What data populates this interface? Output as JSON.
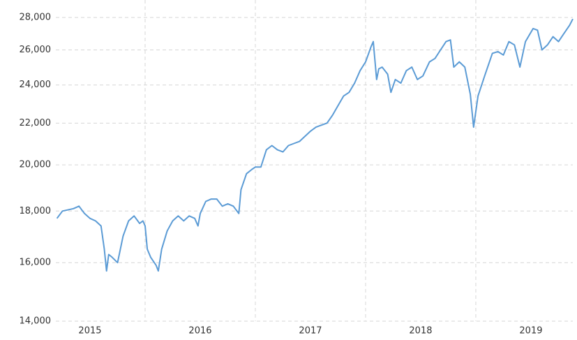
{
  "chart_data": {
    "type": "line",
    "x": [
      2015.2,
      2015.25,
      2015.35,
      2015.4,
      2015.45,
      2015.5,
      2015.55,
      2015.6,
      2015.63,
      2015.65,
      2015.67,
      2015.7,
      2015.75,
      2015.8,
      2015.85,
      2015.9,
      2015.95,
      2015.98,
      2016.0,
      2016.02,
      2016.05,
      2016.1,
      2016.12,
      2016.15,
      2016.2,
      2016.25,
      2016.3,
      2016.35,
      2016.4,
      2016.45,
      2016.48,
      2016.5,
      2016.55,
      2016.6,
      2016.65,
      2016.7,
      2016.75,
      2016.8,
      2016.85,
      2016.87,
      2016.92,
      2016.97,
      2017.0,
      2017.05,
      2017.1,
      2017.15,
      2017.2,
      2017.25,
      2017.3,
      2017.35,
      2017.4,
      2017.5,
      2017.55,
      2017.6,
      2017.65,
      2017.7,
      2017.75,
      2017.8,
      2017.85,
      2017.9,
      2017.95,
      2018.0,
      2018.05,
      2018.07,
      2018.1,
      2018.12,
      2018.15,
      2018.2,
      2018.23,
      2018.27,
      2018.32,
      2018.37,
      2018.42,
      2018.47,
      2018.52,
      2018.58,
      2018.63,
      2018.68,
      2018.73,
      2018.77,
      2018.8,
      2018.85,
      2018.9,
      2018.95,
      2018.98,
      2019.02,
      2019.08,
      2019.15,
      2019.2,
      2019.25,
      2019.3,
      2019.35,
      2019.4,
      2019.45,
      2019.52,
      2019.56,
      2019.6,
      2019.65,
      2019.7,
      2019.75,
      2019.8,
      2019.85,
      2019.88
    ],
    "series": [
      {
        "color": "#5b9bd5",
        "values": [
          17700,
          18000,
          18100,
          18200,
          17900,
          17700,
          17600,
          17400,
          16500,
          15700,
          16300,
          16200,
          16000,
          17000,
          17600,
          17800,
          17500,
          17600,
          17400,
          16500,
          16200,
          15900,
          15700,
          16500,
          17200,
          17600,
          17800,
          17600,
          17800,
          17700,
          17400,
          17900,
          18400,
          18500,
          18500,
          18200,
          18300,
          18200,
          17900,
          18900,
          19600,
          19800,
          19900,
          19900,
          20700,
          20900,
          20700,
          20600,
          20900,
          21000,
          21100,
          21600,
          21800,
          21900,
          22000,
          22400,
          22900,
          23400,
          23600,
          24100,
          24800,
          25300,
          26200,
          26500,
          24300,
          24900,
          25000,
          24600,
          23600,
          24300,
          24100,
          24800,
          25000,
          24300,
          24500,
          25300,
          25500,
          26000,
          26500,
          26600,
          25000,
          25300,
          25000,
          23500,
          21800,
          23400,
          24500,
          25800,
          25900,
          25700,
          26500,
          26300,
          25000,
          26500,
          27300,
          27200,
          26000,
          26300,
          26800,
          26500,
          27000,
          27500,
          27900
        ]
      }
    ],
    "xlim": [
      2015.19,
      2019.88
    ],
    "xticks": [
      {
        "value": 2015.5,
        "label": "2015"
      },
      {
        "value": 2016.5,
        "label": "2016"
      },
      {
        "value": 2017.5,
        "label": "2017"
      },
      {
        "value": 2018.5,
        "label": "2018"
      },
      {
        "value": 2019.5,
        "label": "2019"
      }
    ],
    "xgrid": [
      2016,
      2017,
      2018,
      2019
    ],
    "ylim": [
      14000,
      28000
    ],
    "yticks": [
      {
        "value": 14000,
        "label": "14,000"
      },
      {
        "value": 16000,
        "label": "16,000"
      },
      {
        "value": 18000,
        "label": "18,000"
      },
      {
        "value": 20000,
        "label": "20,000"
      },
      {
        "value": 22000,
        "label": "22,000"
      },
      {
        "value": 24000,
        "label": "24,000"
      },
      {
        "value": 26000,
        "label": "26,000"
      },
      {
        "value": 28000,
        "label": "28,000"
      }
    ],
    "log_scale": true,
    "grid": true
  }
}
